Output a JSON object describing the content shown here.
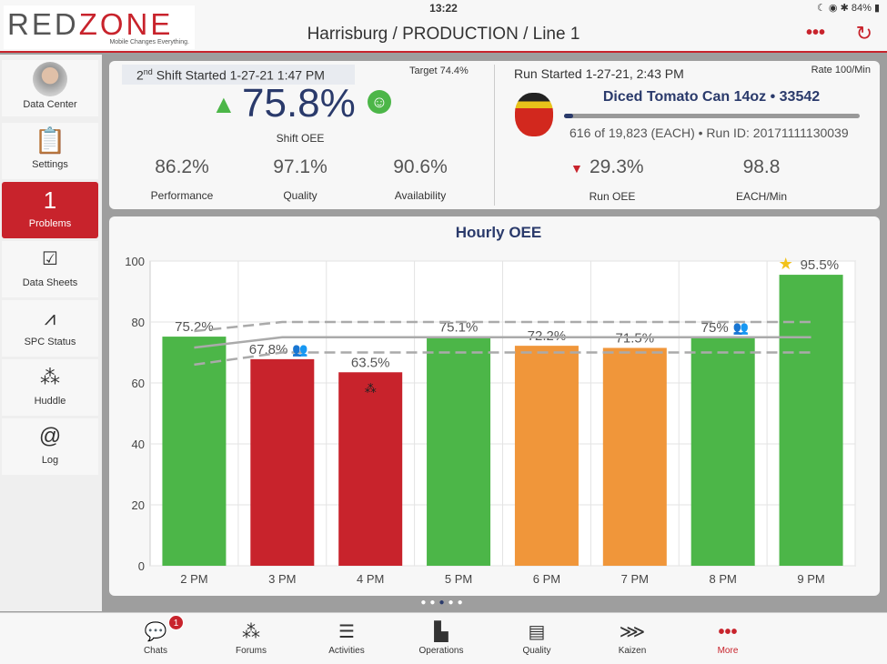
{
  "status_bar": {
    "time": "13:22",
    "battery": "84%"
  },
  "header": {
    "logo": "REDZONE",
    "logo_tagline": "Mobile Changes Everything.",
    "title": "Harrisburg / PRODUCTION / Line 1",
    "more": "•••",
    "refresh": "↻"
  },
  "sidebar": {
    "items": [
      {
        "label": "Data Center"
      },
      {
        "label": "Settings"
      },
      {
        "label": "Problems",
        "count": "1"
      },
      {
        "label": "Data Sheets"
      },
      {
        "label": "SPC Status"
      },
      {
        "label": "Huddle"
      },
      {
        "label": "Log"
      }
    ]
  },
  "shift": {
    "ordinal": "2",
    "ordinal_suffix": "nd",
    "started": "Shift Started 1-27-21 1:47 PM",
    "target": "Target 74.4%",
    "oee": "75.8%",
    "oee_label": "Shift OEE",
    "metrics": [
      {
        "value": "86.2%",
        "label": "Performance"
      },
      {
        "value": "97.1%",
        "label": "Quality"
      },
      {
        "value": "90.6%",
        "label": "Availability"
      }
    ]
  },
  "run": {
    "started": "Run Started 1-27-21, 2:43 PM",
    "rate": "Rate 100/Min",
    "product": "Diced Tomato Can 14oz • 33542",
    "progress": 0.031,
    "count": "616 of 19,823 (EACH) • Run ID: 20171111130039",
    "metrics": [
      {
        "value": "29.3%",
        "label": "Run OEE"
      },
      {
        "value": "98.8",
        "label": "EACH/Min"
      }
    ]
  },
  "colors": {
    "red": "#c8232c",
    "green": "#4cb648",
    "orange": "#f0963a",
    "navy": "#2a3a6b"
  },
  "chart_data": {
    "type": "bar",
    "title": "Hourly OEE",
    "categories": [
      "2 PM",
      "3 PM",
      "4 PM",
      "5 PM",
      "6 PM",
      "7 PM",
      "8 PM",
      "9 PM"
    ],
    "values": [
      75.2,
      67.8,
      63.5,
      75.1,
      72.2,
      71.5,
      75,
      95.5
    ],
    "labels": [
      "75.2%",
      "67.8%",
      "63.5%",
      "75.1%",
      "72.2%",
      "71.5%",
      "75%",
      "95.5%"
    ],
    "bar_colors": [
      "green",
      "red",
      "red",
      "green",
      "orange",
      "orange",
      "green",
      "green"
    ],
    "ylim": [
      0,
      100
    ],
    "yticks": [
      0,
      20,
      40,
      60,
      80,
      100
    ],
    "target_line": [
      71.6,
      75,
      75,
      75,
      75,
      75,
      75,
      75
    ],
    "upper_band": [
      77,
      80,
      80,
      80,
      80,
      80,
      80,
      80
    ],
    "lower_band": [
      66,
      70,
      70,
      70,
      70,
      70,
      70,
      70
    ]
  },
  "pager": {
    "pages": 5,
    "current": 3
  },
  "tabs": [
    {
      "label": "Chats",
      "badge": "1"
    },
    {
      "label": "Forums"
    },
    {
      "label": "Activities"
    },
    {
      "label": "Operations"
    },
    {
      "label": "Quality"
    },
    {
      "label": "Kaizen"
    },
    {
      "label": "More"
    }
  ]
}
